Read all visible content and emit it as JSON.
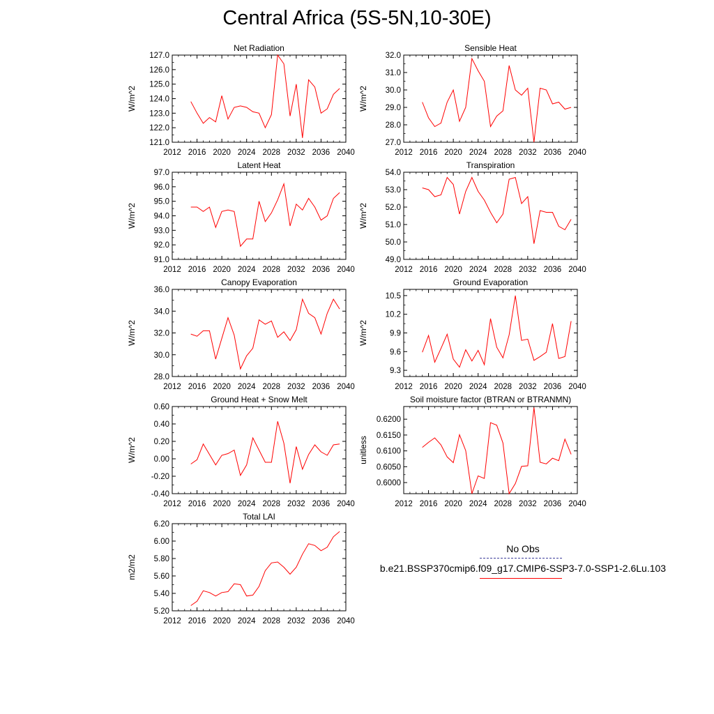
{
  "title": "Central Africa (5S-5N,10-30E)",
  "legend": {
    "entries": [
      {
        "label": "No Obs",
        "color": "#3b3b99",
        "dash": "dashed"
      },
      {
        "label": "b.e21.BSSP370cmip6.f09_g17.CMIP6-SSP3-7.0-SSP1-2.6Lu.103",
        "color": "#ff0000",
        "dash": "solid"
      }
    ]
  },
  "chart_data": [
    {
      "type": "line",
      "title": "Net Radiation",
      "ylabel": "W/m^2",
      "xlabel": "",
      "xlim": [
        2012,
        2040
      ],
      "xticks": [
        2012,
        2016,
        2020,
        2024,
        2028,
        2032,
        2036,
        2040
      ],
      "ylim": [
        121.0,
        127.0
      ],
      "yticks": [
        121.0,
        122.0,
        123.0,
        124.0,
        125.0,
        126.0,
        127.0
      ],
      "ytick_labels": [
        "121.0",
        "122.0",
        "123.0",
        "124.0",
        "125.0",
        "126.0",
        "127.0"
      ],
      "color": "#ff0000",
      "x": [
        2015,
        2016,
        2017,
        2018,
        2019,
        2020,
        2021,
        2022,
        2023,
        2024,
        2025,
        2026,
        2027,
        2028,
        2029,
        2030,
        2031,
        2032,
        2033,
        2034,
        2035,
        2036,
        2037,
        2038,
        2039
      ],
      "y": [
        123.8,
        123.0,
        122.3,
        122.7,
        122.4,
        124.2,
        122.6,
        123.4,
        123.5,
        123.4,
        123.1,
        123.0,
        122.0,
        122.9,
        127.0,
        126.4,
        122.8,
        125.0,
        121.3,
        125.3,
        124.8,
        123.0,
        123.3,
        124.3,
        124.7
      ]
    },
    {
      "type": "line",
      "title": "Sensible Heat",
      "ylabel": "W/m^2",
      "xlabel": "",
      "xlim": [
        2012,
        2040
      ],
      "xticks": [
        2012,
        2016,
        2020,
        2024,
        2028,
        2032,
        2036,
        2040
      ],
      "ylim": [
        27.0,
        32.0
      ],
      "yticks": [
        27.0,
        28.0,
        29.0,
        30.0,
        31.0,
        32.0
      ],
      "ytick_labels": [
        "27.0",
        "28.0",
        "29.0",
        "30.0",
        "31.0",
        "32.0"
      ],
      "color": "#ff0000",
      "x": [
        2015,
        2016,
        2017,
        2018,
        2019,
        2020,
        2021,
        2022,
        2023,
        2024,
        2025,
        2026,
        2027,
        2028,
        2029,
        2030,
        2031,
        2032,
        2033,
        2034,
        2035,
        2036,
        2037,
        2038,
        2039
      ],
      "y": [
        29.3,
        28.4,
        27.9,
        28.1,
        29.3,
        30.0,
        28.2,
        29.0,
        31.8,
        31.1,
        30.5,
        27.9,
        28.5,
        28.8,
        31.4,
        30.0,
        29.7,
        30.1,
        27.0,
        30.1,
        30.0,
        29.2,
        29.3,
        28.9,
        29.0
      ]
    },
    {
      "type": "line",
      "title": "Latent Heat",
      "ylabel": "W/m^2",
      "xlabel": "",
      "xlim": [
        2012,
        2040
      ],
      "xticks": [
        2012,
        2016,
        2020,
        2024,
        2028,
        2032,
        2036,
        2040
      ],
      "ylim": [
        91.0,
        97.0
      ],
      "yticks": [
        91.0,
        92.0,
        93.0,
        94.0,
        95.0,
        96.0,
        97.0
      ],
      "ytick_labels": [
        "91.0",
        "92.0",
        "93.0",
        "94.0",
        "95.0",
        "96.0",
        "97.0"
      ],
      "color": "#ff0000",
      "x": [
        2015,
        2016,
        2017,
        2018,
        2019,
        2020,
        2021,
        2022,
        2023,
        2024,
        2025,
        2026,
        2027,
        2028,
        2029,
        2030,
        2031,
        2032,
        2033,
        2034,
        2035,
        2036,
        2037,
        2038,
        2039
      ],
      "y": [
        94.6,
        94.6,
        94.3,
        94.6,
        93.2,
        94.3,
        94.4,
        94.3,
        91.9,
        92.4,
        92.4,
        95.0,
        93.6,
        94.2,
        95.1,
        96.2,
        93.3,
        94.8,
        94.4,
        95.2,
        94.6,
        93.7,
        94.0,
        95.2,
        95.6
      ]
    },
    {
      "type": "line",
      "title": "Transpiration",
      "ylabel": "W/m^2",
      "xlabel": "",
      "xlim": [
        2012,
        2040
      ],
      "xticks": [
        2012,
        2016,
        2020,
        2024,
        2028,
        2032,
        2036,
        2040
      ],
      "ylim": [
        49.0,
        54.0
      ],
      "yticks": [
        49.0,
        50.0,
        51.0,
        52.0,
        53.0,
        54.0
      ],
      "ytick_labels": [
        "49.0",
        "50.0",
        "51.0",
        "52.0",
        "53.0",
        "54.0"
      ],
      "color": "#ff0000",
      "x": [
        2015,
        2016,
        2017,
        2018,
        2019,
        2020,
        2021,
        2022,
        2023,
        2024,
        2025,
        2026,
        2027,
        2028,
        2029,
        2030,
        2031,
        2032,
        2033,
        2034,
        2035,
        2036,
        2037,
        2038,
        2039
      ],
      "y": [
        53.1,
        53.0,
        52.6,
        52.7,
        53.7,
        53.3,
        51.6,
        52.9,
        53.7,
        52.9,
        52.4,
        51.7,
        51.1,
        51.6,
        53.6,
        53.7,
        52.2,
        52.6,
        49.9,
        51.8,
        51.7,
        51.7,
        50.9,
        50.7,
        51.3
      ]
    },
    {
      "type": "line",
      "title": "Canopy Evaporation",
      "ylabel": "W/m^2",
      "xlabel": "",
      "xlim": [
        2012,
        2040
      ],
      "xticks": [
        2012,
        2016,
        2020,
        2024,
        2028,
        2032,
        2036,
        2040
      ],
      "ylim": [
        28.0,
        36.0
      ],
      "yticks": [
        28.0,
        30.0,
        32.0,
        34.0,
        36.0
      ],
      "ytick_labels": [
        "28.0",
        "30.0",
        "32.0",
        "34.0",
        "36.0"
      ],
      "color": "#ff0000",
      "x": [
        2015,
        2016,
        2017,
        2018,
        2019,
        2020,
        2021,
        2022,
        2023,
        2024,
        2025,
        2026,
        2027,
        2028,
        2029,
        2030,
        2031,
        2032,
        2033,
        2034,
        2035,
        2036,
        2037,
        2038,
        2039
      ],
      "y": [
        31.9,
        31.7,
        32.2,
        32.2,
        29.6,
        31.5,
        33.4,
        31.8,
        28.7,
        29.9,
        30.6,
        33.2,
        32.8,
        33.1,
        31.6,
        32.1,
        31.3,
        32.3,
        35.1,
        33.8,
        33.4,
        31.9,
        33.8,
        35.1,
        34.2
      ]
    },
    {
      "type": "line",
      "title": "Ground Evaporation",
      "ylabel": "W/m^2",
      "xlabel": "",
      "xlim": [
        2012,
        2040
      ],
      "xticks": [
        2012,
        2016,
        2020,
        2024,
        2028,
        2032,
        2036,
        2040
      ],
      "ylim": [
        9.2,
        10.6
      ],
      "yticks": [
        9.3,
        9.6,
        9.9,
        10.2,
        10.5
      ],
      "ytick_labels": [
        "9.3",
        "9.6",
        "9.9",
        "10.2",
        "10.5"
      ],
      "color": "#ff0000",
      "x": [
        2015,
        2016,
        2017,
        2018,
        2019,
        2020,
        2021,
        2022,
        2023,
        2024,
        2025,
        2026,
        2027,
        2028,
        2029,
        2030,
        2031,
        2032,
        2033,
        2034,
        2035,
        2036,
        2037,
        2038,
        2039
      ],
      "y": [
        9.59,
        9.86,
        9.43,
        9.65,
        9.88,
        9.48,
        9.35,
        9.63,
        9.45,
        9.62,
        9.39,
        10.13,
        9.67,
        9.5,
        9.87,
        10.5,
        9.78,
        9.8,
        9.46,
        9.52,
        9.59,
        10.05,
        9.49,
        9.52,
        10.09
      ]
    },
    {
      "type": "line",
      "title": "Ground Heat + Snow Melt",
      "ylabel": "W/m^2",
      "xlabel": "",
      "xlim": [
        2012,
        2040
      ],
      "xticks": [
        2012,
        2016,
        2020,
        2024,
        2028,
        2032,
        2036,
        2040
      ],
      "ylim": [
        -0.4,
        0.6
      ],
      "yticks": [
        -0.4,
        -0.2,
        0.0,
        0.2,
        0.4,
        0.6
      ],
      "ytick_labels": [
        "-0.40",
        "-0.20",
        "0.00",
        "0.20",
        "0.40",
        "0.60"
      ],
      "color": "#ff0000",
      "x": [
        2015,
        2016,
        2017,
        2018,
        2019,
        2020,
        2021,
        2022,
        2023,
        2024,
        2025,
        2026,
        2027,
        2028,
        2029,
        2030,
        2031,
        2032,
        2033,
        2034,
        2035,
        2036,
        2037,
        2038,
        2039
      ],
      "y": [
        -0.06,
        -0.01,
        0.17,
        0.05,
        -0.07,
        0.04,
        0.06,
        0.1,
        -0.19,
        -0.07,
        0.24,
        0.1,
        -0.04,
        -0.04,
        0.43,
        0.18,
        -0.28,
        0.14,
        -0.12,
        0.05,
        0.16,
        0.08,
        0.04,
        0.16,
        0.17
      ]
    },
    {
      "type": "line",
      "title": "Soil moisture factor (BTRAN or BTRANMN)",
      "ylabel": "unitless",
      "xlabel": "",
      "xlim": [
        2012,
        2040
      ],
      "xticks": [
        2012,
        2016,
        2020,
        2024,
        2028,
        2032,
        2036,
        2040
      ],
      "ylim": [
        0.5965,
        0.624
      ],
      "yticks": [
        0.6,
        0.605,
        0.61,
        0.615,
        0.62
      ],
      "ytick_labels": [
        "0.6000",
        "0.6050",
        "0.6100",
        "0.6150",
        "0.6200"
      ],
      "color": "#ff0000",
      "x": [
        2015,
        2016,
        2017,
        2018,
        2019,
        2020,
        2021,
        2022,
        2023,
        2024,
        2025,
        2026,
        2027,
        2028,
        2029,
        2030,
        2031,
        2032,
        2033,
        2034,
        2035,
        2036,
        2037,
        2038,
        2039
      ],
      "y": [
        0.6111,
        0.6127,
        0.6141,
        0.6119,
        0.6081,
        0.6063,
        0.6151,
        0.6101,
        0.5965,
        0.6021,
        0.6013,
        0.6189,
        0.6181,
        0.6125,
        0.5965,
        0.5997,
        0.6051,
        0.6053,
        0.6237,
        0.6064,
        0.6059,
        0.6077,
        0.6069,
        0.6137,
        0.6089
      ]
    },
    {
      "type": "line",
      "title": "Total LAI",
      "ylabel": "m2/m2",
      "xlabel": "",
      "xlim": [
        2012,
        2040
      ],
      "xticks": [
        2012,
        2016,
        2020,
        2024,
        2028,
        2032,
        2036,
        2040
      ],
      "ylim": [
        5.2,
        6.2
      ],
      "yticks": [
        5.2,
        5.4,
        5.6,
        5.8,
        6.0,
        6.2
      ],
      "ytick_labels": [
        "5.20",
        "5.40",
        "5.60",
        "5.80",
        "6.00",
        "6.20"
      ],
      "color": "#ff0000",
      "x": [
        2015,
        2016,
        2017,
        2018,
        2019,
        2020,
        2021,
        2022,
        2023,
        2024,
        2025,
        2026,
        2027,
        2028,
        2029,
        2030,
        2031,
        2032,
        2033,
        2034,
        2035,
        2036,
        2037,
        2038,
        2039
      ],
      "y": [
        5.26,
        5.31,
        5.43,
        5.41,
        5.37,
        5.41,
        5.42,
        5.51,
        5.5,
        5.37,
        5.38,
        5.48,
        5.66,
        5.75,
        5.76,
        5.7,
        5.62,
        5.7,
        5.85,
        5.97,
        5.95,
        5.89,
        5.93,
        6.05,
        6.11
      ]
    }
  ]
}
